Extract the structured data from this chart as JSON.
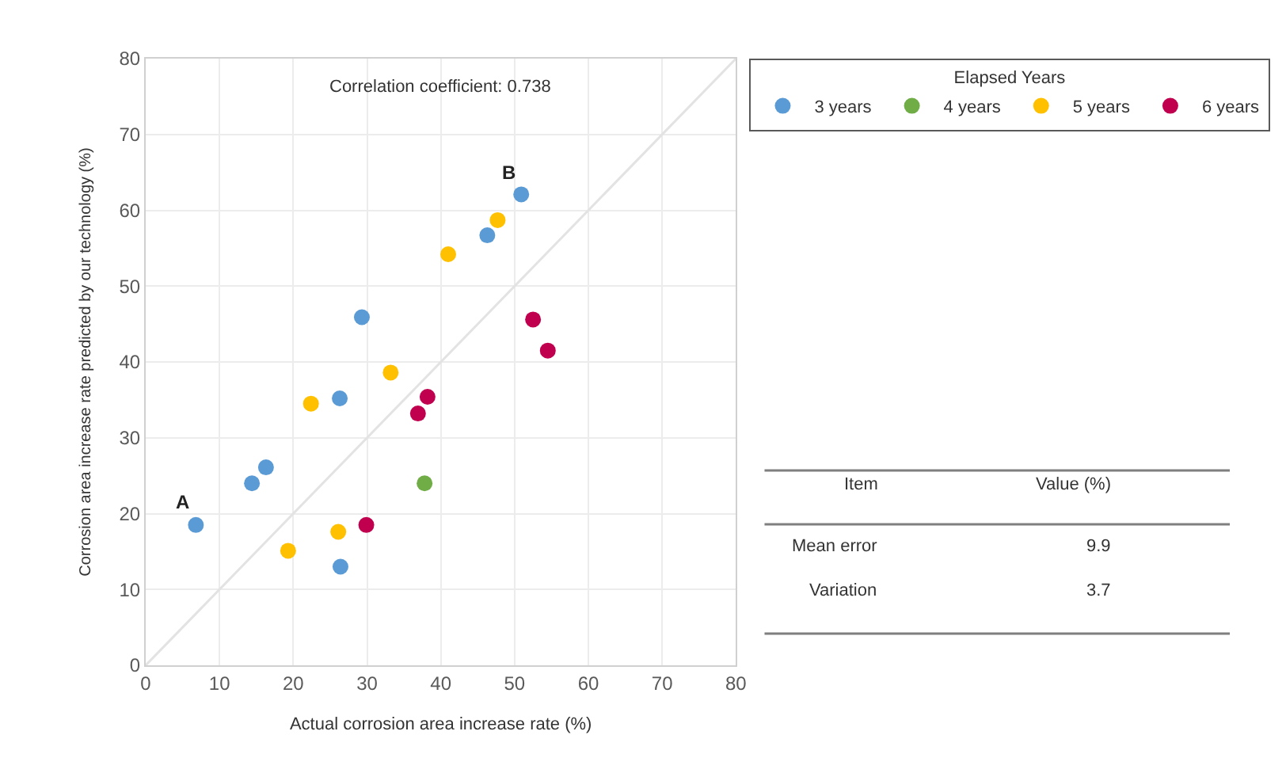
{
  "chart_data": {
    "type": "scatter",
    "xlabel": "Actual corrosion area increase rate (%)",
    "ylabel": "Corrosion area increase rate predicted by our technology (%)",
    "legend_title": "Elapsed Years",
    "legend": "top right",
    "grid": true,
    "marker": "circle",
    "xlim": [
      0,
      80
    ],
    "xticks": [
      0,
      10,
      20,
      30,
      40,
      50,
      60,
      70,
      80
    ],
    "ylim": [
      0,
      80
    ],
    "yticks": [
      0,
      10,
      20,
      30,
      40,
      50,
      60,
      70,
      80
    ],
    "series": [
      {
        "type": "line",
        "marker": "none",
        "color": "#e3e3e3",
        "x": [
          0,
          80
        ],
        "values": [
          0,
          80
        ]
      },
      {
        "name": "3 years",
        "color": "#5b9bd5",
        "x": [
          6.8,
          14.4,
          16.3,
          26.3,
          29.3,
          26.4,
          46.3,
          50.9
        ],
        "values": [
          18.5,
          24.0,
          26.1,
          35.2,
          45.9,
          13.0,
          56.7,
          62.1
        ]
      },
      {
        "name": "4 years",
        "color": "#70ad47",
        "x": [
          37.8
        ],
        "values": [
          24.0
        ]
      },
      {
        "name": "5 years",
        "color": "#ffc000",
        "x": [
          19.3,
          22.4,
          26.1,
          33.2,
          41.0,
          47.7
        ],
        "values": [
          15.1,
          34.5,
          17.6,
          38.6,
          54.2,
          58.7
        ]
      },
      {
        "name": "6 years",
        "color": "#c0004f",
        "x": [
          29.9,
          36.9,
          38.2,
          52.5,
          54.5
        ],
        "values": [
          18.5,
          33.2,
          35.4,
          45.6,
          41.5
        ]
      }
    ],
    "annotations": [
      "Correlation coefficient: 0.738",
      {
        "text": "A",
        "x": 6.8,
        "y": 18.5
      },
      {
        "text": "B",
        "x": 50.9,
        "y": 62.1
      },
      "Item",
      "Value (%)",
      "Mean error",
      "9.9",
      "Variation",
      "3.7"
    ]
  }
}
